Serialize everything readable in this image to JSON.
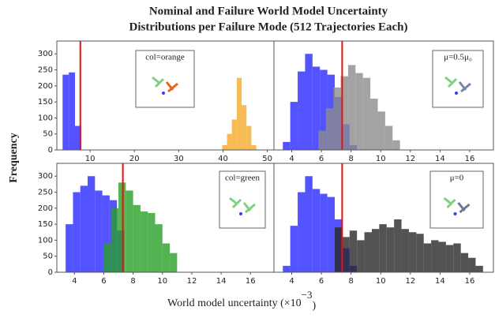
{
  "figure": {
    "title": [
      "Nominal and Failure World Model Uncertainty",
      "Distributions per Failure Mode (512 Trajectories Each)"
    ],
    "ylabel": "Frequency",
    "xlabel": "World model uncertainty (×10",
    "xlabel_exponent": "−3",
    "xlabel_end": ")"
  },
  "chart_data": [
    {
      "type": "histogram",
      "inset_label": "col=orange",
      "xlim": [
        2.5,
        51.5
      ],
      "xticks": [
        10,
        20,
        30,
        40,
        50
      ],
      "ylim": [
        0,
        340
      ],
      "yticks": [
        0,
        50,
        100,
        150,
        200,
        250,
        300
      ],
      "threshold": 7.8,
      "threshold_color": "#e81010",
      "series": [
        {
          "color": "#2828ff",
          "bins": [
            3.8,
            5.2,
            6.6,
            8.0
          ],
          "values": [
            235,
            242,
            75
          ]
        },
        {
          "color": "#f5aa2a",
          "bins": [
            39.8,
            40.9,
            42.0,
            43.1,
            44.2,
            45.3,
            46.4,
            47.5
          ],
          "values": [
            15,
            50,
            95,
            225,
            140,
            75,
            15
          ]
        }
      ]
    },
    {
      "type": "histogram",
      "inset_label": "μ=0.5μ₀",
      "xlim": [
        2.8,
        17.6
      ],
      "xticks": [
        4,
        6,
        8,
        10,
        12,
        14,
        16
      ],
      "ylim": [
        0,
        340
      ],
      "threshold": 7.4,
      "threshold_color": "#e81010",
      "series": [
        {
          "color": "#2828ff",
          "bins": [
            3.4,
            3.9,
            4.4,
            4.9,
            5.4,
            5.9,
            6.4,
            6.9,
            7.4,
            7.9,
            8.4
          ],
          "values": [
            25,
            150,
            245,
            300,
            260,
            250,
            235,
            165,
            80,
            15
          ]
        },
        {
          "color": "#8c8c8c",
          "bins": [
            5.8,
            6.3,
            6.8,
            7.3,
            7.8,
            8.3,
            8.8,
            9.3,
            9.8,
            10.3,
            10.8,
            11.3
          ],
          "values": [
            60,
            130,
            195,
            230,
            265,
            240,
            225,
            160,
            120,
            75,
            30
          ]
        }
      ]
    },
    {
      "type": "histogram",
      "inset_label": "col=green",
      "xlim": [
        2.8,
        17.6
      ],
      "xticks": [
        4,
        6,
        8,
        10,
        12,
        14,
        16
      ],
      "ylim": [
        0,
        340
      ],
      "yticks": [
        0,
        50,
        100,
        150,
        200,
        250,
        300
      ],
      "threshold": 7.3,
      "threshold_color": "#e81010",
      "series": [
        {
          "color": "#2828ff",
          "bins": [
            3.4,
            3.9,
            4.4,
            4.9,
            5.4,
            5.9,
            6.4,
            6.9,
            7.4
          ],
          "values": [
            150,
            250,
            270,
            300,
            255,
            240,
            225,
            130
          ]
        },
        {
          "color": "#28a028",
          "bins": [
            6.0,
            6.5,
            7.0,
            7.5,
            8.0,
            8.5,
            9.0,
            9.5,
            10.0,
            10.5,
            11.0
          ],
          "values": [
            90,
            200,
            280,
            255,
            210,
            190,
            185,
            150,
            90,
            60
          ]
        }
      ]
    },
    {
      "type": "histogram",
      "inset_label": "μ=0",
      "xlim": [
        2.8,
        17.6
      ],
      "xticks": [
        4,
        6,
        8,
        10,
        12,
        14,
        16
      ],
      "ylim": [
        0,
        340
      ],
      "threshold": 7.4,
      "threshold_color": "#e81010",
      "series": [
        {
          "color": "#2828ff",
          "bins": [
            3.4,
            3.9,
            4.4,
            4.9,
            5.4,
            5.9,
            6.4,
            6.9,
            7.4,
            7.9,
            8.4
          ],
          "values": [
            20,
            145,
            250,
            300,
            260,
            245,
            235,
            165,
            75,
            20
          ]
        },
        {
          "color": "#282828",
          "bins": [
            6.9,
            7.4,
            7.9,
            8.4,
            8.9,
            9.4,
            9.9,
            10.4,
            10.9,
            11.4,
            11.9,
            12.4,
            12.9,
            13.4,
            13.9,
            14.4,
            14.9,
            15.4,
            15.9,
            16.4,
            16.9
          ],
          "values": [
            140,
            110,
            130,
            100,
            125,
            135,
            150,
            140,
            165,
            135,
            125,
            120,
            90,
            100,
            95,
            85,
            90,
            60,
            45,
            20
          ]
        }
      ]
    }
  ]
}
